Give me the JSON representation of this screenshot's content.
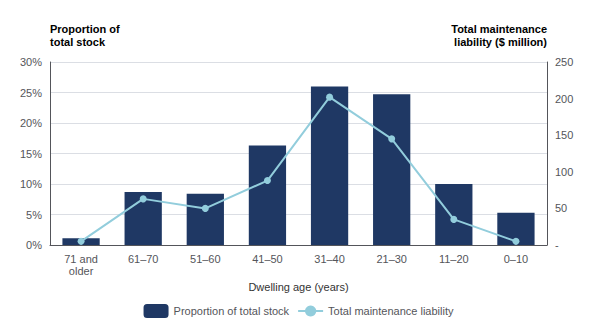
{
  "chart_data": {
    "type": "bar",
    "categories": [
      "71 and\nolder",
      "61–70",
      "51–60",
      "41–50",
      "31–40",
      "21–30",
      "11–20",
      "0–10"
    ],
    "xlabel": "Dwelling age (years)",
    "ylabel": "Proportion of\ntotal stock",
    "y2label": "Total maintenance\nliability ($ million)",
    "series": [
      {
        "name": "Proportion of total stock",
        "type": "bar",
        "color": "#1F3864",
        "values": [
          1.1,
          8.7,
          8.4,
          16.3,
          26.0,
          24.7,
          10.0,
          5.3
        ]
      },
      {
        "name": "Total maintenance liability",
        "type": "line",
        "color": "#92CDDC",
        "marker": "circle",
        "axis": "y2",
        "values": [
          5,
          63,
          50,
          88,
          202,
          145,
          35,
          5
        ]
      }
    ],
    "ylim": [
      0,
      30
    ],
    "yticks": [
      {
        "value": 0,
        "label": "0%"
      },
      {
        "value": 5,
        "label": "5%"
      },
      {
        "value": 10,
        "label": "10%"
      },
      {
        "value": 15,
        "label": "15%"
      },
      {
        "value": 20,
        "label": "20%"
      },
      {
        "value": 25,
        "label": "25%"
      },
      {
        "value": 30,
        "label": "30%"
      }
    ],
    "y2lim": [
      0,
      250
    ],
    "y2ticks": [
      {
        "value": 0,
        "label": "-"
      },
      50,
      100,
      150,
      200,
      250
    ],
    "grid": true,
    "legend": "bottom"
  }
}
